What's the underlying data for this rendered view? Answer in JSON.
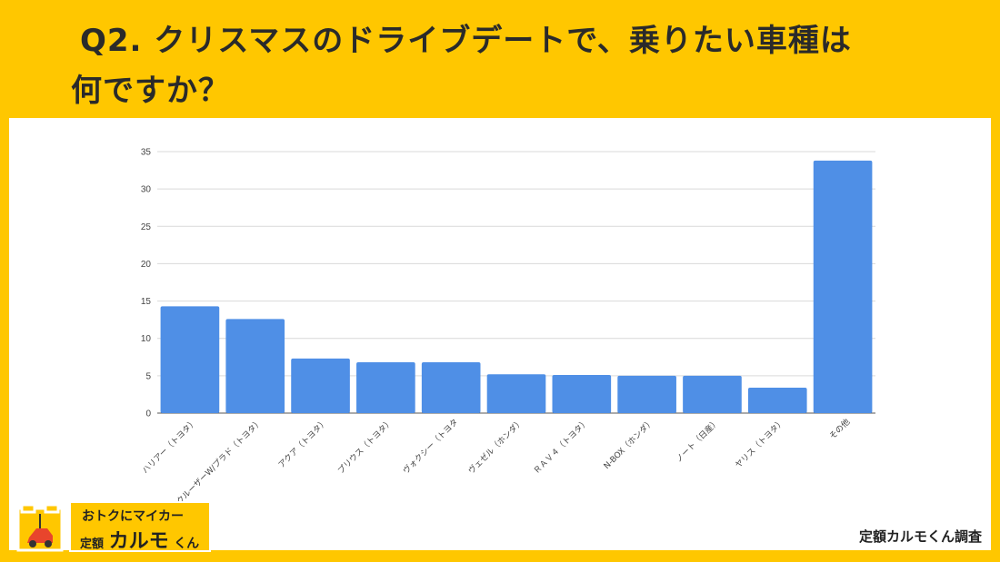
{
  "header": {
    "title_line1": "Q2. クリスマスのドライブデートで、乗りたい車種は",
    "title_line2": "何ですか？"
  },
  "logo": {
    "tagline": "おトクにマイカー",
    "prefix": "定額",
    "brand": "カルモ",
    "suffix": "くん"
  },
  "source": "定額カルモくん調査",
  "colors": {
    "bar": "#4F8FE6",
    "background": "#FFC700",
    "grid": "#d9d9d9"
  },
  "chart_data": {
    "type": "bar",
    "categories": [
      "ハリアー（トヨタ）",
      "ランドクルーザーW/プラド（トヨタ）",
      "アクア（トヨタ）",
      "プリウス（トヨタ）",
      "ヴォクシー（トヨタ",
      "ヴェゼル（ホンダ）",
      "ＲＡＶ４（トヨタ）",
      "N-BOX（ホンダ）",
      "ノート（日産）",
      "ヤリス（トヨタ）",
      "その他"
    ],
    "values": [
      14.3,
      12.6,
      7.3,
      6.8,
      6.8,
      5.2,
      5.1,
      5.0,
      5.0,
      3.4,
      33.8
    ],
    "ylim": [
      0,
      35
    ],
    "yticks": [
      0,
      5,
      10,
      15,
      20,
      25,
      30,
      35
    ],
    "grid": true,
    "legend": "none"
  }
}
